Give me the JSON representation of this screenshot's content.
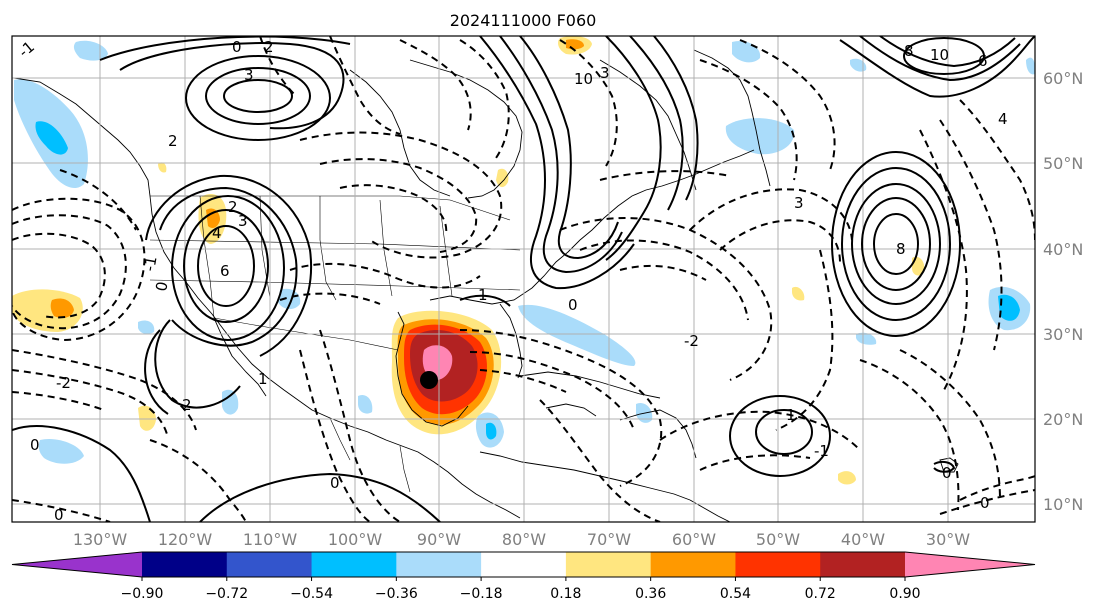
{
  "title": "2024111000 F060",
  "map": {
    "lon_ticks": [
      "130°W",
      "120°W",
      "110°W",
      "100°W",
      "90°W",
      "80°W",
      "70°W",
      "60°W",
      "50°W",
      "40°W",
      "30°W"
    ],
    "lat_ticks": [
      "60°N",
      "50°N",
      "40°N",
      "30°N",
      "20°N",
      "10°N"
    ],
    "contour_labels": [
      {
        "id": "c1",
        "text": "-1"
      },
      {
        "id": "c2",
        "text": "0"
      },
      {
        "id": "c3",
        "text": "2"
      },
      {
        "id": "c4",
        "text": "3"
      },
      {
        "id": "c5",
        "text": "2"
      },
      {
        "id": "c6",
        "text": "10"
      },
      {
        "id": "c7",
        "text": "3"
      },
      {
        "id": "c8",
        "text": "10"
      },
      {
        "id": "c9",
        "text": "8"
      },
      {
        "id": "c10",
        "text": "6"
      },
      {
        "id": "c11",
        "text": "4"
      },
      {
        "id": "c12",
        "text": "4"
      },
      {
        "id": "c13",
        "text": "3"
      },
      {
        "id": "c14",
        "text": "2"
      },
      {
        "id": "c15",
        "text": "6"
      },
      {
        "id": "c16",
        "text": "-1"
      },
      {
        "id": "c17",
        "text": "0"
      },
      {
        "id": "c18",
        "text": "1"
      },
      {
        "id": "c19",
        "text": "2"
      },
      {
        "id": "c20",
        "text": "0"
      },
      {
        "id": "c21",
        "text": "0"
      },
      {
        "id": "c22",
        "text": "-2"
      },
      {
        "id": "c23",
        "text": "0"
      },
      {
        "id": "c24",
        "text": "1"
      },
      {
        "id": "c25",
        "text": "3"
      },
      {
        "id": "c26",
        "text": "8"
      },
      {
        "id": "c27",
        "text": "1"
      },
      {
        "id": "c28",
        "text": "0"
      },
      {
        "id": "c29",
        "text": "0"
      },
      {
        "id": "c30",
        "text": "-1"
      },
      {
        "id": "c31",
        "text": "-2"
      },
      {
        "id": "c32",
        "text": "0"
      }
    ]
  },
  "colorbar": {
    "levels": [
      "−0.90",
      "−0.72",
      "−0.54",
      "−0.36",
      "−0.18",
      "0.18",
      "0.36",
      "0.54",
      "0.72",
      "0.90"
    ],
    "colors": [
      "#9933cc",
      "#000088",
      "#3355cc",
      "#00bfff",
      "#aadcfa",
      "#ffffff",
      "#ffe680",
      "#ff9900",
      "#ff3300",
      "#b22222",
      "#ff85b3"
    ]
  },
  "storm_marker": {
    "lon": -90.5,
    "lat": 24.5
  }
}
